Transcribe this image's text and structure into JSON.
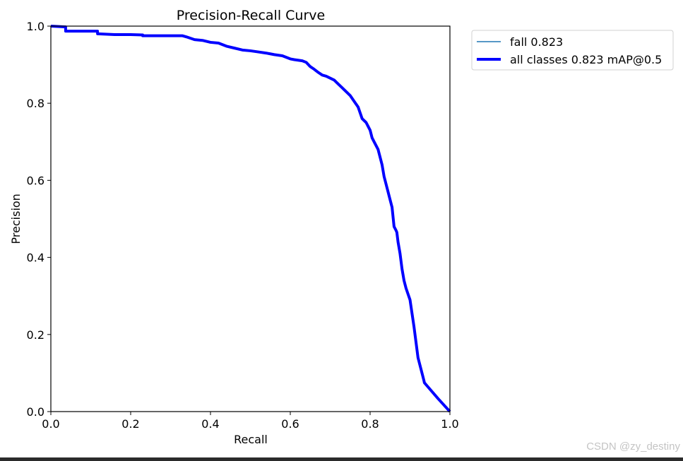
{
  "chart_data": {
    "type": "line",
    "title": "Precision-Recall Curve",
    "xlabel": "Recall",
    "ylabel": "Precision",
    "xlim": [
      0,
      1
    ],
    "ylim": [
      0,
      1
    ],
    "xticks": [
      "0.0",
      "0.2",
      "0.4",
      "0.6",
      "0.8",
      "1.0"
    ],
    "yticks": [
      "0.0",
      "0.2",
      "0.4",
      "0.6",
      "0.8",
      "1.0"
    ],
    "grid": false,
    "legend_position": "outside-top-right",
    "series": [
      {
        "name": "fall 0.823",
        "color": "#1f77b4",
        "width": "thin",
        "x": [
          0.0,
          0.0,
          0.037,
          0.037,
          0.1,
          0.117,
          0.117,
          0.16,
          0.2,
          0.23,
          0.23,
          0.28,
          0.33,
          0.34,
          0.36,
          0.38,
          0.4,
          0.42,
          0.44,
          0.46,
          0.48,
          0.5,
          0.52,
          0.54,
          0.56,
          0.58,
          0.6,
          0.61,
          0.63,
          0.64,
          0.65,
          0.66,
          0.67,
          0.68,
          0.69,
          0.7,
          0.71,
          0.72,
          0.73,
          0.74,
          0.75,
          0.76,
          0.77,
          0.775,
          0.78,
          0.79,
          0.795,
          0.8,
          0.805,
          0.81,
          0.82,
          0.825,
          0.83,
          0.835,
          0.84,
          0.845,
          0.85,
          0.855,
          0.86,
          0.865,
          0.867,
          0.87,
          0.875,
          0.88,
          0.885,
          0.89,
          0.895,
          0.9,
          0.905,
          0.91,
          0.915,
          0.92,
          0.925,
          0.93,
          0.935,
          0.936,
          0.94,
          0.97,
          1.0
        ],
        "y": [
          1.0,
          1.0,
          0.998,
          0.987,
          0.987,
          0.987,
          0.98,
          0.978,
          0.978,
          0.977,
          0.975,
          0.975,
          0.975,
          0.972,
          0.965,
          0.963,
          0.958,
          0.956,
          0.948,
          0.943,
          0.938,
          0.936,
          0.933,
          0.93,
          0.926,
          0.923,
          0.915,
          0.913,
          0.91,
          0.906,
          0.895,
          0.888,
          0.88,
          0.873,
          0.87,
          0.865,
          0.86,
          0.85,
          0.84,
          0.83,
          0.82,
          0.805,
          0.79,
          0.775,
          0.76,
          0.75,
          0.74,
          0.73,
          0.71,
          0.7,
          0.68,
          0.66,
          0.64,
          0.61,
          0.59,
          0.57,
          0.55,
          0.53,
          0.48,
          0.47,
          0.465,
          0.44,
          0.41,
          0.37,
          0.34,
          0.32,
          0.305,
          0.29,
          0.255,
          0.22,
          0.18,
          0.14,
          0.12,
          0.1,
          0.08,
          0.075,
          0.07,
          0.034,
          0.0
        ]
      },
      {
        "name": "all classes 0.823 mAP@0.5",
        "color": "#0000ff",
        "width": "thick",
        "x": [
          0.0,
          0.0,
          0.037,
          0.037,
          0.1,
          0.117,
          0.117,
          0.16,
          0.2,
          0.23,
          0.23,
          0.28,
          0.33,
          0.34,
          0.36,
          0.38,
          0.4,
          0.42,
          0.44,
          0.46,
          0.48,
          0.5,
          0.52,
          0.54,
          0.56,
          0.58,
          0.6,
          0.61,
          0.63,
          0.64,
          0.65,
          0.66,
          0.67,
          0.68,
          0.69,
          0.7,
          0.71,
          0.72,
          0.73,
          0.74,
          0.75,
          0.76,
          0.77,
          0.775,
          0.78,
          0.79,
          0.795,
          0.8,
          0.805,
          0.81,
          0.82,
          0.825,
          0.83,
          0.835,
          0.84,
          0.845,
          0.85,
          0.855,
          0.86,
          0.865,
          0.867,
          0.87,
          0.875,
          0.88,
          0.885,
          0.89,
          0.895,
          0.9,
          0.905,
          0.91,
          0.915,
          0.92,
          0.925,
          0.93,
          0.935,
          0.936,
          0.94,
          0.97,
          1.0
        ],
        "y": [
          1.0,
          1.0,
          0.998,
          0.987,
          0.987,
          0.987,
          0.98,
          0.978,
          0.978,
          0.977,
          0.975,
          0.975,
          0.975,
          0.972,
          0.965,
          0.963,
          0.958,
          0.956,
          0.948,
          0.943,
          0.938,
          0.936,
          0.933,
          0.93,
          0.926,
          0.923,
          0.915,
          0.913,
          0.91,
          0.906,
          0.895,
          0.888,
          0.88,
          0.873,
          0.87,
          0.865,
          0.86,
          0.85,
          0.84,
          0.83,
          0.82,
          0.805,
          0.79,
          0.775,
          0.76,
          0.75,
          0.74,
          0.73,
          0.71,
          0.7,
          0.68,
          0.66,
          0.64,
          0.61,
          0.59,
          0.57,
          0.55,
          0.53,
          0.48,
          0.47,
          0.465,
          0.44,
          0.41,
          0.37,
          0.34,
          0.32,
          0.305,
          0.29,
          0.255,
          0.22,
          0.18,
          0.14,
          0.12,
          0.1,
          0.08,
          0.075,
          0.07,
          0.034,
          0.0
        ]
      }
    ]
  },
  "watermark": "CSDN @zy_destiny"
}
